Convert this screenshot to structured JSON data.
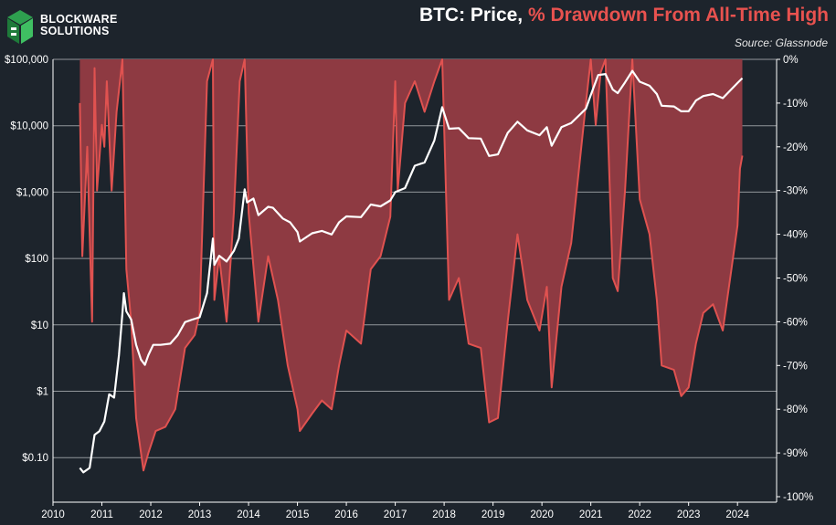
{
  "logo": {
    "line1": "BLOCKWARE",
    "line2": "SOLUTIONS",
    "name": "cube-logo-icon"
  },
  "title": {
    "part1": "BTC: Price, ",
    "part2": "% Drawdown From All-Time High"
  },
  "source": "Source: Glassnode",
  "colors": {
    "background": "#1d242c",
    "price": "#ffffff",
    "drawdown_fill": "#8e3a42",
    "drawdown_line": "#e05250",
    "grid": "#b9bcc0",
    "title_accent": "#e8524f",
    "logo_green": "#2e9f4f"
  },
  "chart_data": {
    "type": "line",
    "title": "BTC: Price, % Drawdown From All-Time High",
    "x_ticks": [
      "2010",
      "2011",
      "2012",
      "2013",
      "2014",
      "2015",
      "2016",
      "2017",
      "2018",
      "2019",
      "2020",
      "2021",
      "2022",
      "2023",
      "2024"
    ],
    "y_left": {
      "scale": "log",
      "range": [
        0.04,
        100000
      ],
      "ticks": [
        0.1,
        1,
        10,
        100,
        1000,
        10000,
        100000
      ],
      "tick_labels": [
        "$0.10",
        "$1",
        "$10",
        "$100",
        "$1,000",
        "$10,000",
        "$100,000"
      ]
    },
    "y_right": {
      "range": [
        -100,
        0
      ],
      "ticks": [
        0,
        -10,
        -20,
        -30,
        -40,
        -50,
        -60,
        -70,
        -80,
        -90,
        -100
      ],
      "tick_labels": [
        "0%",
        "-10%",
        "-20%",
        "-30%",
        "-40%",
        "-50%",
        "-60%",
        "-70%",
        "-80%",
        "-90%",
        "-100%"
      ]
    },
    "series": [
      {
        "name": "BTC Price (USD, log)",
        "axis": "left",
        "points": [
          [
            2010.55,
            0.07
          ],
          [
            2010.62,
            0.06
          ],
          [
            2010.75,
            0.07
          ],
          [
            2010.85,
            0.22
          ],
          [
            2010.95,
            0.25
          ],
          [
            2011.05,
            0.35
          ],
          [
            2011.15,
            0.9
          ],
          [
            2011.25,
            0.8
          ],
          [
            2011.35,
            3.5
          ],
          [
            2011.42,
            15
          ],
          [
            2011.45,
            30
          ],
          [
            2011.5,
            16
          ],
          [
            2011.6,
            12
          ],
          [
            2011.7,
            5
          ],
          [
            2011.8,
            3
          ],
          [
            2011.88,
            2.5
          ],
          [
            2011.95,
            3.5
          ],
          [
            2012.05,
            5
          ],
          [
            2012.2,
            5
          ],
          [
            2012.4,
            5.2
          ],
          [
            2012.55,
            7
          ],
          [
            2012.7,
            11
          ],
          [
            2012.85,
            12
          ],
          [
            2013.0,
            13
          ],
          [
            2013.15,
            30
          ],
          [
            2013.27,
            200
          ],
          [
            2013.3,
            80
          ],
          [
            2013.4,
            110
          ],
          [
            2013.55,
            90
          ],
          [
            2013.7,
            130
          ],
          [
            2013.8,
            200
          ],
          [
            2013.92,
            1100
          ],
          [
            2013.97,
            700
          ],
          [
            2014.1,
            800
          ],
          [
            2014.2,
            450
          ],
          [
            2014.4,
            600
          ],
          [
            2014.5,
            580
          ],
          [
            2014.7,
            400
          ],
          [
            2014.85,
            350
          ],
          [
            2015.0,
            250
          ],
          [
            2015.05,
            180
          ],
          [
            2015.3,
            240
          ],
          [
            2015.5,
            260
          ],
          [
            2015.7,
            230
          ],
          [
            2015.85,
            350
          ],
          [
            2016.0,
            430
          ],
          [
            2016.3,
            420
          ],
          [
            2016.5,
            650
          ],
          [
            2016.7,
            610
          ],
          [
            2016.9,
            750
          ],
          [
            2017.0,
            1000
          ],
          [
            2017.2,
            1150
          ],
          [
            2017.4,
            2500
          ],
          [
            2017.6,
            2800
          ],
          [
            2017.8,
            6000
          ],
          [
            2017.96,
            19000
          ],
          [
            2018.1,
            9000
          ],
          [
            2018.3,
            9200
          ],
          [
            2018.5,
            6500
          ],
          [
            2018.75,
            6400
          ],
          [
            2018.92,
            3500
          ],
          [
            2019.1,
            3700
          ],
          [
            2019.3,
            7800
          ],
          [
            2019.5,
            11500
          ],
          [
            2019.7,
            8500
          ],
          [
            2019.95,
            7200
          ],
          [
            2020.1,
            9500
          ],
          [
            2020.2,
            5000
          ],
          [
            2020.4,
            9500
          ],
          [
            2020.6,
            11000
          ],
          [
            2020.9,
            18000
          ],
          [
            2021.0,
            29000
          ],
          [
            2021.15,
            58000
          ],
          [
            2021.3,
            60000
          ],
          [
            2021.45,
            35000
          ],
          [
            2021.55,
            31000
          ],
          [
            2021.7,
            45000
          ],
          [
            2021.85,
            67000
          ],
          [
            2022.0,
            46000
          ],
          [
            2022.2,
            40000
          ],
          [
            2022.35,
            30000
          ],
          [
            2022.45,
            20000
          ],
          [
            2022.7,
            19500
          ],
          [
            2022.85,
            16500
          ],
          [
            2023.0,
            16500
          ],
          [
            2023.15,
            24000
          ],
          [
            2023.3,
            28000
          ],
          [
            2023.5,
            30000
          ],
          [
            2023.7,
            26000
          ],
          [
            2023.85,
            34000
          ],
          [
            2024.0,
            44000
          ],
          [
            2024.1,
            52000
          ]
        ]
      },
      {
        "name": "% Drawdown From ATH",
        "axis": "right",
        "points": [
          [
            2010.55,
            -10
          ],
          [
            2010.6,
            -45
          ],
          [
            2010.7,
            -20
          ],
          [
            2010.8,
            -60
          ],
          [
            2010.85,
            -2
          ],
          [
            2010.9,
            -30
          ],
          [
            2011.0,
            -15
          ],
          [
            2011.05,
            -20
          ],
          [
            2011.1,
            -5
          ],
          [
            2011.2,
            -30
          ],
          [
            2011.3,
            -12
          ],
          [
            2011.42,
            0
          ],
          [
            2011.5,
            -48
          ],
          [
            2011.6,
            -60
          ],
          [
            2011.7,
            -82
          ],
          [
            2011.85,
            -94
          ],
          [
            2011.95,
            -90
          ],
          [
            2012.1,
            -85
          ],
          [
            2012.3,
            -84
          ],
          [
            2012.5,
            -80
          ],
          [
            2012.7,
            -66
          ],
          [
            2012.9,
            -63
          ],
          [
            2013.0,
            -58
          ],
          [
            2013.15,
            -5
          ],
          [
            2013.27,
            0
          ],
          [
            2013.3,
            -55
          ],
          [
            2013.4,
            -45
          ],
          [
            2013.55,
            -60
          ],
          [
            2013.7,
            -35
          ],
          [
            2013.82,
            -5
          ],
          [
            2013.92,
            0
          ],
          [
            2014.0,
            -35
          ],
          [
            2014.2,
            -60
          ],
          [
            2014.4,
            -45
          ],
          [
            2014.6,
            -55
          ],
          [
            2014.8,
            -70
          ],
          [
            2015.0,
            -80
          ],
          [
            2015.05,
            -85
          ],
          [
            2015.3,
            -81
          ],
          [
            2015.5,
            -78
          ],
          [
            2015.7,
            -80
          ],
          [
            2015.85,
            -70
          ],
          [
            2016.0,
            -62
          ],
          [
            2016.3,
            -65
          ],
          [
            2016.5,
            -48
          ],
          [
            2016.7,
            -45
          ],
          [
            2016.9,
            -36
          ],
          [
            2017.0,
            -5
          ],
          [
            2017.05,
            -30
          ],
          [
            2017.2,
            -10
          ],
          [
            2017.4,
            -5
          ],
          [
            2017.6,
            -12
          ],
          [
            2017.8,
            -5
          ],
          [
            2017.96,
            0
          ],
          [
            2018.1,
            -55
          ],
          [
            2018.3,
            -50
          ],
          [
            2018.5,
            -65
          ],
          [
            2018.75,
            -66
          ],
          [
            2018.92,
            -83
          ],
          [
            2019.1,
            -82
          ],
          [
            2019.3,
            -60
          ],
          [
            2019.5,
            -40
          ],
          [
            2019.7,
            -55
          ],
          [
            2019.95,
            -62
          ],
          [
            2020.1,
            -52
          ],
          [
            2020.2,
            -75
          ],
          [
            2020.4,
            -52
          ],
          [
            2020.6,
            -42
          ],
          [
            2020.9,
            -10
          ],
          [
            2021.0,
            0
          ],
          [
            2021.1,
            -15
          ],
          [
            2021.2,
            -3
          ],
          [
            2021.3,
            0
          ],
          [
            2021.45,
            -50
          ],
          [
            2021.55,
            -53
          ],
          [
            2021.7,
            -30
          ],
          [
            2021.85,
            0
          ],
          [
            2022.0,
            -32
          ],
          [
            2022.2,
            -40
          ],
          [
            2022.35,
            -55
          ],
          [
            2022.45,
            -70
          ],
          [
            2022.7,
            -71
          ],
          [
            2022.85,
            -77
          ],
          [
            2023.0,
            -75
          ],
          [
            2023.15,
            -65
          ],
          [
            2023.3,
            -58
          ],
          [
            2023.5,
            -56
          ],
          [
            2023.7,
            -62
          ],
          [
            2023.85,
            -50
          ],
          [
            2024.0,
            -38
          ],
          [
            2024.05,
            -25
          ],
          [
            2024.1,
            -22
          ]
        ]
      }
    ]
  }
}
